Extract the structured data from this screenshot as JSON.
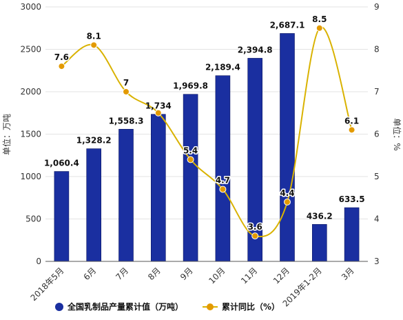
{
  "chart_data": {
    "type": "bar",
    "categories": [
      "2018年5月",
      "6月",
      "7月",
      "8月",
      "9月",
      "10月",
      "11月",
      "12月",
      "2019年1-2月",
      "3月"
    ],
    "series": [
      {
        "name": "全国乳制品产量累计值（万吨）",
        "type": "bar",
        "axis": "left",
        "values": [
          1060.4,
          1328.2,
          1558.3,
          1734,
          1969.8,
          2189.4,
          2394.8,
          2687.1,
          436.2,
          633.5
        ],
        "labels": [
          "1,060.4",
          "1,328.2",
          "1,558.3",
          "1,734",
          "1,969.8",
          "2,189.4",
          "2,394.8",
          "2,687.1",
          "436.2",
          "633.5"
        ],
        "color": "#1a2fa0"
      },
      {
        "name": "累计同比（%）",
        "type": "line",
        "axis": "right",
        "values": [
          7.6,
          8.1,
          7,
          6.5,
          5.4,
          4.7,
          3.6,
          4.4,
          8.5,
          6.1
        ],
        "labels": [
          "7.6",
          "8.1",
          "7",
          "",
          "5.4",
          "4.7",
          "3.6",
          "4.4",
          "8.5",
          "6.1"
        ],
        "color": "#d9b200",
        "marker_color": "#e39a00"
      }
    ],
    "y_left": {
      "label": "单位：万吨",
      "range": [
        0,
        3000
      ],
      "ticks": [
        0,
        500,
        1000,
        1500,
        2000,
        2500,
        3000
      ]
    },
    "y_right": {
      "label": "单位：%",
      "range": [
        3,
        9
      ],
      "ticks": [
        3,
        4,
        5,
        6,
        7,
        8,
        9
      ]
    },
    "grid": true,
    "legend_position": "bottom"
  }
}
